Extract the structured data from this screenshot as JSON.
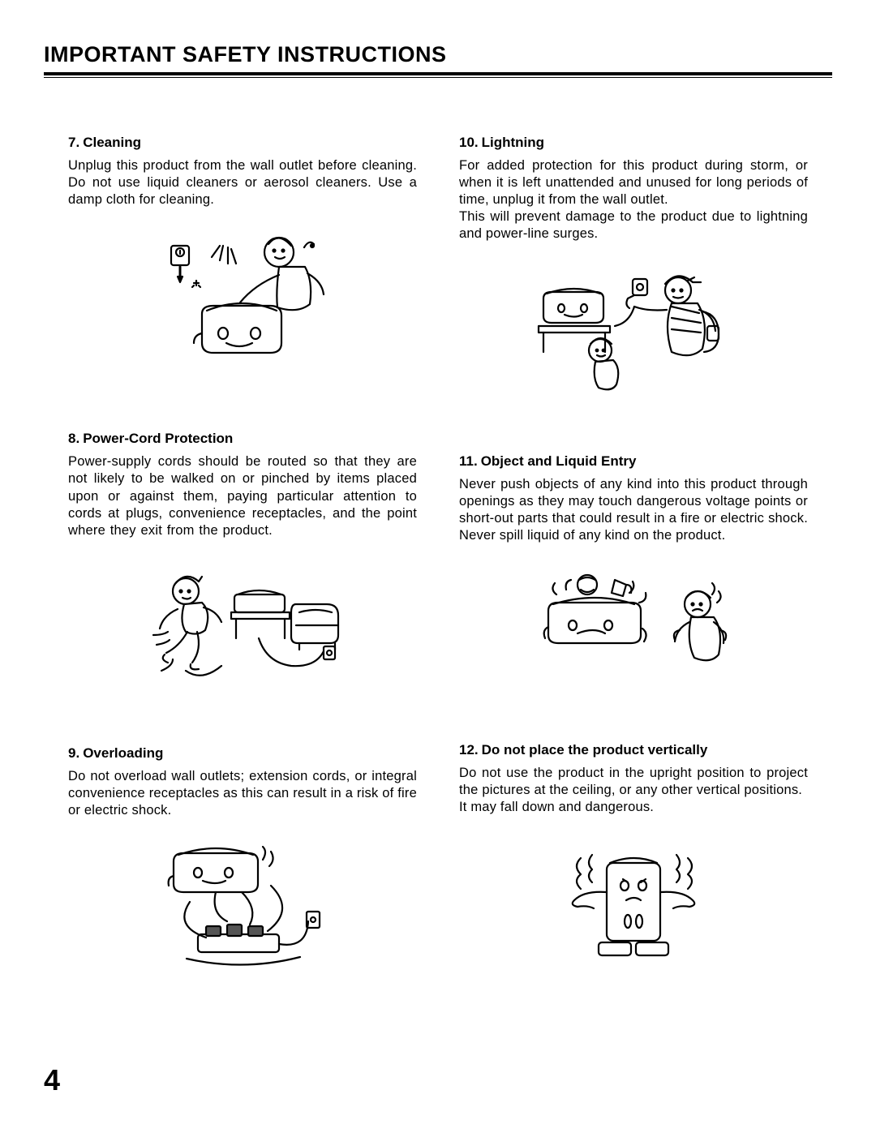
{
  "page": {
    "title": "IMPORTANT SAFETY INSTRUCTIONS",
    "number": "4"
  },
  "left": [
    {
      "num": "7.",
      "heading": "Cleaning",
      "body": "Unplug this product from the wall outlet before cleaning. Do not use liquid cleaners or aerosol cleaners. Use a damp cloth for cleaning.",
      "illus_w": 240,
      "illus_h": 190
    },
    {
      "num": "8.",
      "heading": "Power-Cord Protection",
      "body": "Power-supply cords should be routed so that they are not likely to be walked on or pinched by items placed upon or against them, paying particular attention to cords at plugs, convenience receptacles, and the point where they exit from the product.",
      "illus_w": 260,
      "illus_h": 170
    },
    {
      "num": "9.",
      "heading": "Overloading",
      "body": "Do not overload wall outlets; extension cords, or integral convenience receptacles as this can result in a risk of fire or electric shock.",
      "illus_w": 250,
      "illus_h": 180
    }
  ],
  "right": [
    {
      "num": "10.",
      "heading": "Lightning",
      "body": "For added protection for this product during storm, or when it is left unattended and unused for long periods of time, unplug it from the wall outlet.\nThis will prevent damage to the product due to lightning and power-line surges.",
      "illus_w": 275,
      "illus_h": 175
    },
    {
      "num": "11.",
      "heading": "Object and Liquid Entry",
      "body": "Never push objects of any kind into this product through openings as they may touch dangerous voltage points or short-out parts that could result in a fire or electric shock. Never spill liquid of any kind on the product.",
      "illus_w": 270,
      "illus_h": 160
    },
    {
      "num": "12.",
      "heading": "Do not place the product vertically",
      "body": "Do not use the product in the upright position to project the pictures at the ceiling, or any other vertical positions.\nIt may fall down and dangerous.",
      "illus_w": 250,
      "illus_h": 175
    }
  ]
}
